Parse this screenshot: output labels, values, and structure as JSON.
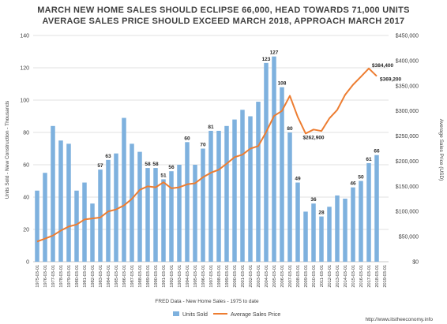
{
  "chart_data": {
    "type": "bar",
    "title_line1": "MARCH NEW HOME SALES SHOULD ECLIPSE 66,000, HEAD TOWARDS 71,000 UNITS",
    "title_line2": "AVERAGE SALES PRICE SHOULD EXCEED MARCH 2018, APPROACH MARCH 2017",
    "ylabel_left": "Units Sold - New Construction - Thousands",
    "ylabel_right": "Average Sales Price (USD)",
    "xlabel": "FRED Data - New Home Sales - 1975 to date",
    "source_url": "http://www.itstheeconomy.info",
    "left_ylim": [
      0,
      140
    ],
    "left_ticks": [
      0,
      20,
      40,
      60,
      80,
      100,
      120,
      140
    ],
    "right_ylim": [
      0,
      450000
    ],
    "right_ticks": [
      "$0",
      "$50,000",
      "$100,000",
      "$150,000",
      "$200,000",
      "$250,000",
      "$300,000",
      "$350,000",
      "$400,000",
      "$450,000"
    ],
    "grid": true,
    "legend_position": "bottom",
    "colors": {
      "bars": "#7eb1de",
      "line": "#ed7d31",
      "grid": "#d9d9d9"
    },
    "categories": [
      "1975-03-01",
      "1976-03-01",
      "1977-03-01",
      "1978-03-01",
      "1979-03-01",
      "1980-03-01",
      "1981-03-01",
      "1982-03-01",
      "1983-03-01",
      "1984-03-01",
      "1985-03-01",
      "1986-03-01",
      "1987-03-01",
      "1988-03-01",
      "1989-03-01",
      "1990-03-01",
      "1991-03-01",
      "1992-03-01",
      "1993-03-01",
      "1994-03-01",
      "1995-03-01",
      "1996-03-01",
      "1997-03-01",
      "1998-03-01",
      "1999-03-01",
      "2000-03-01",
      "2001-03-01",
      "2002-03-01",
      "2003-03-01",
      "2004-03-01",
      "2005-03-01",
      "2006-03-01",
      "2007-03-01",
      "2008-03-01",
      "2009-03-01",
      "2010-03-01",
      "2011-03-01",
      "2012-03-01",
      "2013-03-01",
      "2014-03-01",
      "2015-03-01",
      "2016-03-01",
      "2017-03-01",
      "2018-03-01",
      "2019-03-01"
    ],
    "series": [
      {
        "name": "Units Sold",
        "type": "bar",
        "axis": "left",
        "values": [
          44,
          55,
          84,
          75,
          73,
          44,
          49,
          36,
          57,
          63,
          67,
          89,
          73,
          68,
          58,
          58,
          51,
          56,
          60,
          74,
          60,
          70,
          81,
          81,
          84,
          88,
          94,
          90,
          99,
          123,
          127,
          108,
          80,
          49,
          31,
          36,
          28,
          34,
          41,
          39,
          46,
          50,
          61,
          66,
          null
        ],
        "labels": {
          "8": "57",
          "9": "63",
          "14": "58",
          "15": "58",
          "16": "51",
          "17": "56",
          "19": "60",
          "21": "70",
          "22": "81",
          "29": "123",
          "30": "127",
          "31": "108",
          "32": "80",
          "33": "49",
          "35": "36",
          "36": "28",
          "40": "46",
          "41": "50",
          "42": "61",
          "43": "66"
        }
      },
      {
        "name": "Average Sales Price",
        "type": "line",
        "axis": "right",
        "values": [
          40000,
          46000,
          52000,
          62000,
          70000,
          74000,
          84000,
          86000,
          88000,
          100000,
          104000,
          112000,
          125000,
          143000,
          150000,
          148000,
          158000,
          146000,
          148000,
          154000,
          156000,
          168000,
          177000,
          183000,
          195000,
          208000,
          213000,
          225000,
          230000,
          258000,
          290000,
          300000,
          330000,
          288000,
          255000,
          262900,
          260000,
          285000,
          302000,
          332000,
          352000,
          368000,
          384400,
          369200,
          null
        ],
        "labels": {
          "35": "$262,900",
          "42": "$384,400",
          "43": "$369,200"
        }
      }
    ]
  }
}
